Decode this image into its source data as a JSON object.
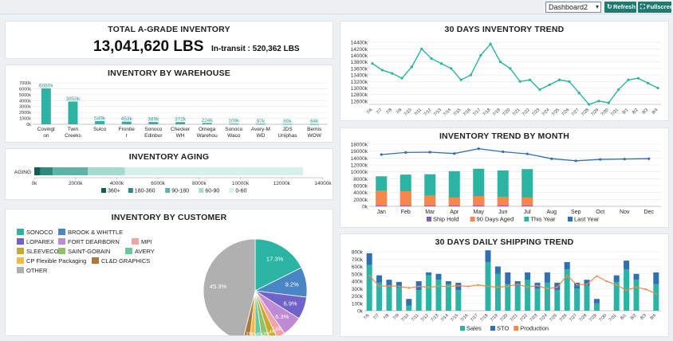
{
  "topbar": {
    "dashboard_select": "Dashboard2",
    "refresh_label": "Refresh",
    "fullscreen_label": "Fullscreen"
  },
  "colors": {
    "teal": "#2bb3a3",
    "dark_teal": "#1a7a6e",
    "orange": "#f4874b",
    "blue": "#2f6fb3",
    "purple": "#7f5fae"
  },
  "total": {
    "title": "TOTAL A-GRADE INVENTORY",
    "value": "13,041,620 LBS",
    "in_transit_label": "In-transit :",
    "in_transit_value": "520,362 LBS"
  },
  "chart_data": [
    {
      "id": "warehouse",
      "type": "bar",
      "title": "INVENTORY BY WAREHOUSE",
      "categories": [
        "Covington",
        "Twin Creeks",
        "Sulco",
        "Frontier",
        "Sonoco Edinbur",
        "Checker WH",
        "Omega Warehou",
        "Sonoco Waco",
        "Avery-M WD",
        "JDS Uniphas",
        "Bemis WOW"
      ],
      "values": [
        6080,
        3850,
        549,
        453,
        389,
        372,
        224,
        109,
        97,
        69,
        64
      ],
      "data_labels": [
        "6080k",
        "3850k",
        "549k",
        "453k",
        "389k",
        "372k",
        "224k",
        "109k",
        "97k",
        "69k",
        "64k"
      ],
      "yticks": [
        "0k",
        "1000k",
        "2000k",
        "3000k",
        "4000k",
        "5000k",
        "6000k",
        "7000k"
      ],
      "ylim": [
        0,
        7000
      ]
    },
    {
      "id": "aging",
      "type": "bar",
      "orientation": "horizontal",
      "title": "INVENTORY AGING",
      "categories": [
        "AGING"
      ],
      "series": [
        {
          "name": "360+",
          "values": [
            300
          ],
          "color": "#0f5e52"
        },
        {
          "name": "180-360",
          "values": [
            600
          ],
          "color": "#2e8a7c"
        },
        {
          "name": "90-180",
          "values": [
            1700
          ],
          "color": "#5fb3a6"
        },
        {
          "name": "60-90",
          "values": [
            1800
          ],
          "color": "#a6dbd2"
        },
        {
          "name": "0-60",
          "values": [
            8640
          ],
          "color": "#d6f1ec"
        }
      ],
      "xticks": [
        "0k",
        "2000k",
        "4000k",
        "6000k",
        "8000k",
        "10000k",
        "12000k",
        "14000k"
      ],
      "xlim": [
        0,
        14000
      ]
    },
    {
      "id": "customer",
      "type": "pie",
      "title": "INVENTORY BY CUSTOMER",
      "legend": [
        {
          "name": "SONOCO",
          "color": "#2bb3a3"
        },
        {
          "name": "BROOK & WHITTLE",
          "color": "#4a86c5"
        },
        {
          "name": "LOPAREX",
          "color": "#6f62c9"
        },
        {
          "name": "FORT DEARBORN",
          "color": "#c08ad6"
        },
        {
          "name": "MPI",
          "color": "#f2a3a6"
        },
        {
          "name": "SLEEVECO",
          "color": "#c9a82b"
        },
        {
          "name": "SAINT-GOBAIN",
          "color": "#8bc26a"
        },
        {
          "name": "AVERY",
          "color": "#66c99a"
        },
        {
          "name": "CP Flexible Packaging",
          "color": "#f6b74a"
        },
        {
          "name": "CL&D GRAPHICS",
          "color": "#b0763b"
        },
        {
          "name": "OTHER",
          "color": "#b0b0b0"
        }
      ],
      "slices": [
        {
          "name": "SONOCO",
          "value": 17.3,
          "label": "17.3%"
        },
        {
          "name": "BROOK & WHITTLE",
          "value": 9.2,
          "label": "9.2%"
        },
        {
          "name": "LOPAREX",
          "value": 6.9,
          "label": "6.9%"
        },
        {
          "name": "FORT DEARBORN",
          "value": 6.3,
          "label": "6.3%"
        },
        {
          "name": "MPI",
          "value": 2.6,
          "label": "2.6%"
        },
        {
          "name": "SLEEVECO",
          "value": 2.4,
          "label": "2.4%"
        },
        {
          "name": "SAINT-GOBAIN",
          "value": 2.3,
          "label": "2.3%"
        },
        {
          "name": "AVERY",
          "value": 2.2,
          "label": "2.2%"
        },
        {
          "name": "CP Flexible Packaging",
          "value": 1.7,
          "label": "1.7%"
        },
        {
          "name": "CL&D GRAPHICS",
          "value": 2.1,
          "label": "2.1%"
        },
        {
          "name": "OTHER",
          "value": 45.3,
          "label": "45.3%"
        }
      ]
    },
    {
      "id": "trend30",
      "type": "line",
      "title": "30 DAYS INVENTORY TREND",
      "x": [
        "7/6",
        "7/7",
        "7/8",
        "7/9",
        "7/10",
        "7/11",
        "7/12",
        "7/13",
        "7/14",
        "7/15",
        "7/16",
        "7/17",
        "7/18",
        "7/19",
        "7/20",
        "7/21",
        "7/22",
        "7/23",
        "7/24",
        "7/25",
        "7/26",
        "7/27",
        "7/28",
        "7/29",
        "7/30",
        "7/31",
        "8/1",
        "8/2",
        "8/3",
        "8/4"
      ],
      "values": [
        13750,
        13550,
        13450,
        13300,
        13650,
        14200,
        13900,
        13750,
        13600,
        13250,
        13400,
        14000,
        14350,
        13800,
        13600,
        13200,
        13250,
        12950,
        13100,
        13250,
        13200,
        12850,
        12500,
        12600,
        12550,
        12950,
        13250,
        13300,
        13150,
        13000
      ],
      "yticks": [
        "12600k",
        "12800k",
        "13000k",
        "13200k",
        "13400k",
        "13600k",
        "13800k",
        "14000k",
        "14200k",
        "14400k"
      ],
      "ylim": [
        12500,
        14500
      ]
    },
    {
      "id": "trend_month",
      "type": "bar",
      "title": "INVENTORY TREND BY MONTH",
      "categories": [
        "Jan",
        "Feb",
        "Mar",
        "Apr",
        "May",
        "Jun",
        "Jul",
        "Aug",
        "Sep",
        "Oct",
        "Nov",
        "Dec"
      ],
      "series": [
        {
          "name": "Ship Hold",
          "values": [
            200,
            200,
            200,
            200,
            200,
            200,
            200,
            null,
            null,
            null,
            null,
            null
          ],
          "color": "#7f5fae"
        },
        {
          "name": "90 Days Aged",
          "values": [
            4600,
            4400,
            3200,
            2600,
            3000,
            2800,
            2600,
            null,
            null,
            null,
            null,
            null
          ],
          "color": "#f4874b"
        },
        {
          "name": "This Year",
          "values": [
            8700,
            9200,
            9300,
            10200,
            10900,
            10400,
            10800,
            null,
            null,
            null,
            null,
            null
          ],
          "color": "#2bb3a3"
        },
        {
          "name": "Last Year",
          "values": [
            15000,
            15600,
            15700,
            15300,
            16700,
            15800,
            15200,
            13800,
            13200,
            13600,
            13700,
            13800
          ],
          "color": "#2f6fb3"
        }
      ],
      "yticks": [
        "0k",
        "2000k",
        "4000k",
        "6000k",
        "8000k",
        "10000k",
        "12000k",
        "14000k",
        "16000k",
        "18000k"
      ],
      "ylim": [
        0,
        18000
      ]
    },
    {
      "id": "shipping",
      "type": "bar",
      "title": "30 DAYS DAILY SHIPPING TREND",
      "categories": [
        "7/6",
        "7/7",
        "7/8",
        "7/9",
        "7/10",
        "7/11",
        "7/12",
        "7/13",
        "7/14",
        "7/15",
        "7/16",
        "7/17",
        "7/18",
        "7/19",
        "7/20",
        "7/21",
        "7/22",
        "7/23",
        "7/24",
        "7/25",
        "7/26",
        "7/27",
        "7/28",
        "7/29",
        "7/30",
        "7/31",
        "8/1",
        "8/2",
        "8/3",
        "8/4"
      ],
      "series": [
        {
          "name": "Sales",
          "values": [
            620,
            380,
            340,
            310,
            70,
            280,
            480,
            420,
            360,
            280,
            0,
            0,
            660,
            500,
            360,
            340,
            420,
            300,
            380,
            280,
            560,
            300,
            340,
            100,
            0,
            390,
            560,
            420,
            0,
            360
          ],
          "color": "#2bb3a3"
        },
        {
          "name": "STO",
          "values": [
            160,
            100,
            80,
            80,
            90,
            120,
            40,
            80,
            40,
            100,
            0,
            0,
            160,
            100,
            160,
            60,
            100,
            80,
            140,
            100,
            100,
            80,
            80,
            60,
            0,
            90,
            120,
            80,
            0,
            160
          ],
          "color": "#2f6fb3"
        },
        {
          "name": "Production",
          "values": [
            480,
            330,
            340,
            330,
            310,
            330,
            320,
            330,
            330,
            340,
            330,
            350,
            330,
            320,
            330,
            360,
            320,
            340,
            300,
            320,
            480,
            350,
            360,
            470,
            400,
            350,
            280,
            320,
            290,
            230
          ],
          "color": "#f4874b"
        }
      ],
      "yticks": [
        "0k",
        "100k",
        "200k",
        "300k",
        "400k",
        "500k",
        "600k",
        "700k",
        "800k"
      ],
      "ylim": [
        0,
        800
      ]
    }
  ]
}
